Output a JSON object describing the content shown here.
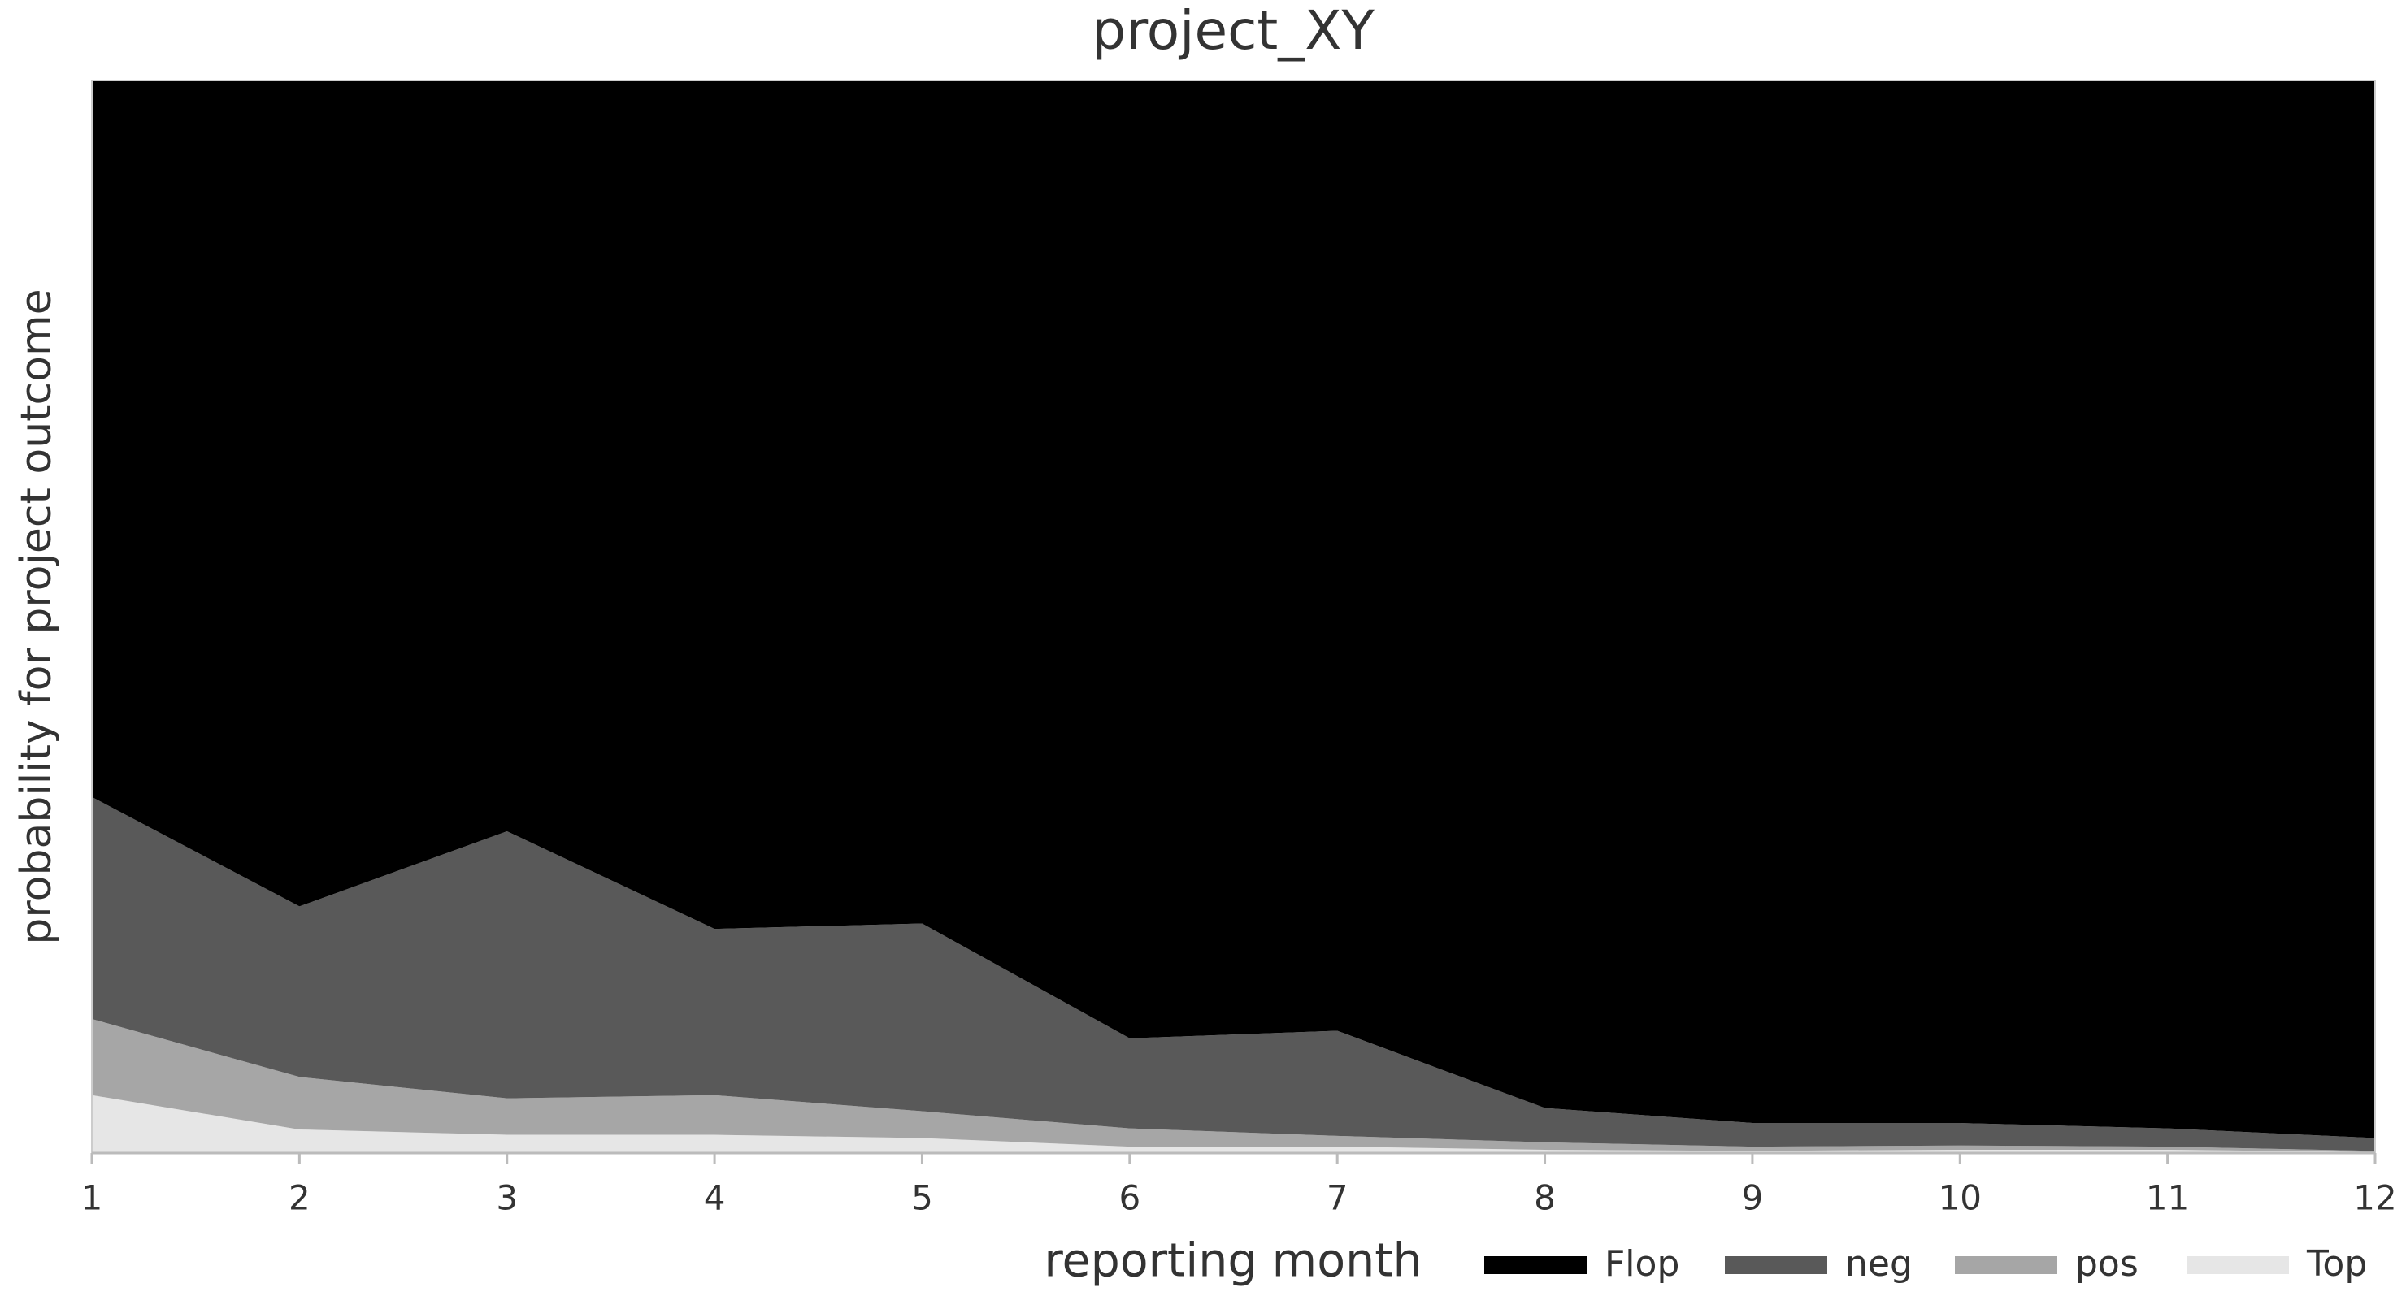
{
  "chart_data": {
    "type": "stacked_area",
    "title": "project_XY",
    "x_label": "reporting month",
    "y_label": "probability for project outcome",
    "x": [
      1,
      2,
      3,
      4,
      5,
      6,
      7,
      8,
      9,
      10,
      11,
      12
    ],
    "xlim": [
      1,
      12
    ],
    "xticks": [
      1,
      2,
      3,
      4,
      5,
      6,
      7,
      8,
      9,
      10,
      11,
      12
    ],
    "ylim": [
      0,
      1
    ],
    "legend": "bottom-right",
    "series": [
      {
        "name": "Flop",
        "color": "#000000",
        "values": [
          0.668,
          0.77,
          0.7,
          0.791,
          0.786,
          0.893,
          0.886,
          0.958,
          0.972,
          0.972,
          0.977,
          0.986
        ]
      },
      {
        "name": "neg",
        "color": "#595959",
        "values": [
          0.207,
          0.159,
          0.249,
          0.155,
          0.175,
          0.084,
          0.098,
          0.032,
          0.022,
          0.021,
          0.017,
          0.012
        ]
      },
      {
        "name": "pos",
        "color": "#a6a6a6",
        "values": [
          0.071,
          0.049,
          0.034,
          0.037,
          0.025,
          0.017,
          0.01,
          0.007,
          0.004,
          0.004,
          0.003,
          0.001
        ]
      },
      {
        "name": "Top",
        "color": "#e6e6e6",
        "values": [
          0.054,
          0.022,
          0.017,
          0.017,
          0.014,
          0.006,
          0.006,
          0.003,
          0.002,
          0.003,
          0.003,
          0.001
        ]
      }
    ]
  }
}
